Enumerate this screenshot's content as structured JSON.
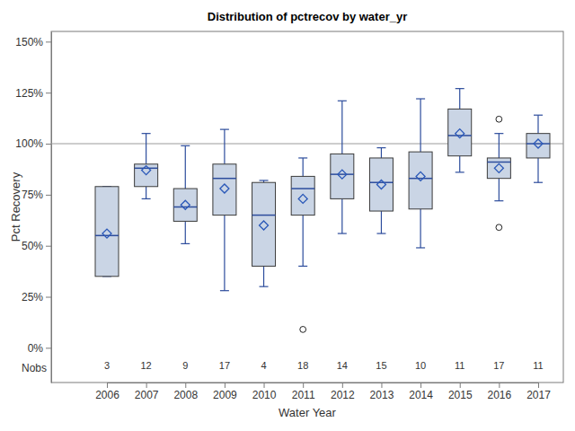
{
  "chart_data": {
    "type": "box",
    "title": "Distribution of pctrecov by water_yr",
    "x_label": "Water Year",
    "y_label": "Pct Recovery",
    "categories": [
      "2006",
      "2007",
      "2008",
      "2009",
      "2010",
      "2011",
      "2012",
      "2013",
      "2014",
      "2015",
      "2016",
      "2017"
    ],
    "min": [
      35,
      73,
      51,
      28,
      30,
      40,
      56,
      56,
      49,
      86,
      72,
      81
    ],
    "q1": [
      35,
      79,
      62,
      65,
      40,
      65,
      73,
      67,
      68,
      94,
      83,
      93
    ],
    "median": [
      55,
      88,
      69,
      83,
      65,
      78,
      85,
      81,
      83,
      104,
      91,
      100
    ],
    "q3": [
      79,
      90,
      78,
      90,
      81,
      84,
      95,
      93,
      96,
      117,
      93,
      105
    ],
    "max": [
      79,
      105,
      99,
      107,
      82,
      93,
      121,
      98,
      122,
      127,
      105,
      114
    ],
    "mean": [
      56,
      87,
      70,
      78,
      60,
      73,
      85,
      80,
      84,
      105,
      88,
      100
    ],
    "outliers": [
      [],
      [],
      [],
      [],
      [],
      [
        9
      ],
      [],
      [],
      [],
      [],
      [
        59,
        112
      ],
      []
    ],
    "nobs_label": "Nobs",
    "nobs": [
      3,
      12,
      9,
      17,
      4,
      18,
      14,
      15,
      10,
      11,
      17,
      11
    ],
    "reference_line": 100,
    "ylim": [
      -17,
      155
    ],
    "yticks": [
      {
        "value": 0,
        "label": "0%"
      },
      {
        "value": 25,
        "label": "25%"
      },
      {
        "value": 50,
        "label": "50%"
      },
      {
        "value": 75,
        "label": "75%"
      },
      {
        "value": 100,
        "label": "100%"
      },
      {
        "value": 125,
        "label": "125%"
      },
      {
        "value": 150,
        "label": "150%"
      }
    ],
    "grid": false,
    "color": "#cad5e5",
    "marker": "diamond"
  }
}
